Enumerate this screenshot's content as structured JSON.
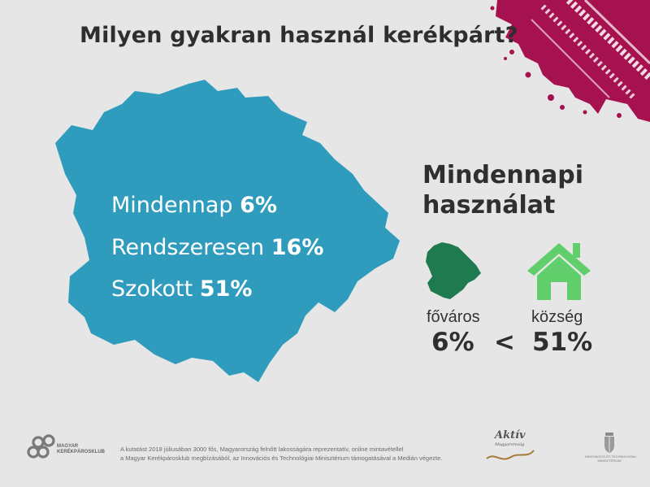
{
  "title": "Milyen gyakran használ kerékpárt?",
  "main_stats": [
    {
      "label": "Mindennap",
      "value": "6%"
    },
    {
      "label": "Rendszeresen",
      "value": "16%"
    },
    {
      "label": "Szokott",
      "value": "51%"
    }
  ],
  "daily_use": {
    "heading_line1": "Mindennapi",
    "heading_line2": "használat",
    "left_label": "főváros",
    "left_value": "6%",
    "operator": "<",
    "right_label": "község",
    "right_value": "51%"
  },
  "footer": {
    "logo_line1": "MAGYAR",
    "logo_line2": "KERÉKPÁROSKLUB",
    "note_line1": "A kutatást 2018 júliusában 3000 fős, Magyarország felnőtt lakosságára reprezentatív, online mintavétellel",
    "note_line2": "a Magyar Kerékpárosklub megbízásából, az Innovációs és Technológiai Minisztérium támogatásával a Medián végezte.",
    "aktiv_line1": "Aktív",
    "aktiv_line2": "Magyarország",
    "ministry_line1": "INNOVÁCIÓS ÉS TECHNOLÓGIAI",
    "ministry_line2": "MINISZTÉRIUM"
  },
  "colors": {
    "background": "#e6e6e6",
    "map_blue": "#2f9cbd",
    "capital_green": "#1f7a4f",
    "village_green": "#5fce6b",
    "splash": "#a6114f"
  }
}
